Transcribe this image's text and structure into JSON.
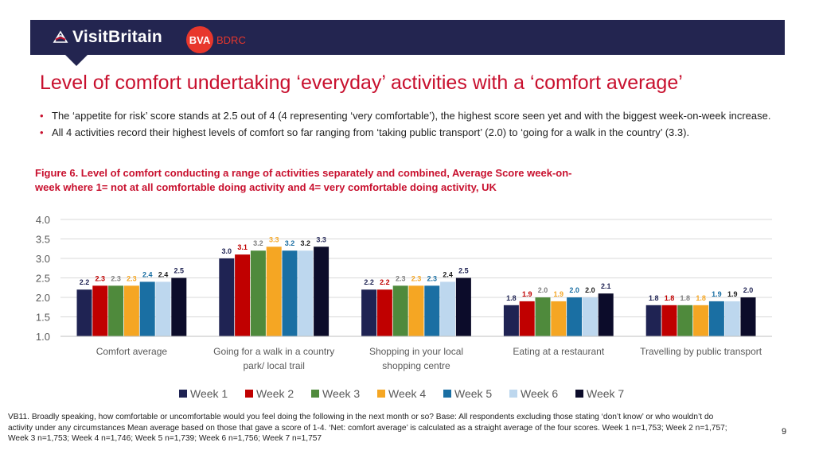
{
  "brand": {
    "visitbritain": "VisitBritain",
    "bva": "BVA",
    "bdrc": "BDRC"
  },
  "title": "Level of comfort undertaking ‘everyday’ activities with a ‘comfort average’",
  "bullets": [
    "The ‘appetite for risk’ score stands at 2.5 out of 4 (4 representing ‘very comfortable’), the highest score seen yet and with the biggest week-on-week increase.",
    "All 4 activities record their highest levels of comfort so far ranging from ‘taking public transport’ (2.0) to ‘going for a walk in the country’ (3.3)."
  ],
  "figure_caption_line1": "Figure 6. Level of comfort conducting a range of activities separately and combined, Average Score week-on-",
  "figure_caption_line2": "week where 1= not at all comfortable doing activity and 4= very comfortable doing activity, UK",
  "chart_data": {
    "type": "bar",
    "title": "Figure 6. Level of comfort conducting a range of activities separately and combined, Average Score week-on-week where 1= not at all comfortable doing activity and 4= very comfortable doing activity, UK",
    "categories": [
      "Comfort average",
      "Going for a walk in a country park/ local trail",
      "Shopping in your local shopping centre",
      "Eating at a restaurant",
      "Travelling by public transport"
    ],
    "category_lines": [
      [
        "Comfort average"
      ],
      [
        "Going for a walk in a country",
        "park/ local trail"
      ],
      [
        "Shopping in your local",
        "shopping centre"
      ],
      [
        "Eating at a restaurant"
      ],
      [
        "Travelling by public transport"
      ]
    ],
    "series": [
      {
        "name": "Week 1",
        "color": "#1f2353",
        "label_color": "#1f2353",
        "values": [
          2.2,
          3.0,
          2.2,
          1.8,
          1.8
        ]
      },
      {
        "name": "Week 2",
        "color": "#c00000",
        "label_color": "#c00000",
        "values": [
          2.3,
          3.1,
          2.2,
          1.9,
          1.8
        ]
      },
      {
        "name": "Week 3",
        "color": "#4f8a3c",
        "label_color": "#7f7f7f",
        "values": [
          2.3,
          3.2,
          2.3,
          2.0,
          1.8
        ]
      },
      {
        "name": "Week 4",
        "color": "#f5a623",
        "label_color": "#f5a623",
        "values": [
          2.3,
          3.3,
          2.3,
          1.9,
          1.8
        ]
      },
      {
        "name": "Week 5",
        "color": "#1a6fa3",
        "label_color": "#1a6fa3",
        "values": [
          2.4,
          3.2,
          2.3,
          2.0,
          1.9
        ]
      },
      {
        "name": "Week 6",
        "color": "#bdd7ee",
        "label_color": "#222222",
        "values": [
          2.4,
          3.2,
          2.4,
          2.0,
          1.9
        ]
      },
      {
        "name": "Week 7",
        "color": "#0c0c2a",
        "label_color": "#1f2353",
        "values": [
          2.5,
          3.3,
          2.5,
          2.1,
          2.0
        ]
      }
    ],
    "ylim": [
      1.0,
      4.0
    ],
    "yticks": [
      "1.0",
      "1.5",
      "2.0",
      "2.5",
      "3.0",
      "3.5",
      "4.0"
    ],
    "xlabel": "",
    "ylabel": "",
    "grid": true,
    "legend_position": "bottom"
  },
  "footnote": "VB11.  Broadly speaking, how comfortable or uncomfortable would you feel doing the following in the next month or so? Base: All respondents excluding those stating ‘don’t know’ or who wouldn’t do activity under any circumstances Mean average based on those that gave a score of 1-4. ‘Net: comfort average’ is calculated as a straight average of the four scores. Week 1 n=1,753; Week 2 n=1,757; Week 3 n=1,753; Week 4 n=1,746; Week 5 n=1,739; Week 6 n=1,756; Week 7 n=1,757",
  "page_number": "9"
}
